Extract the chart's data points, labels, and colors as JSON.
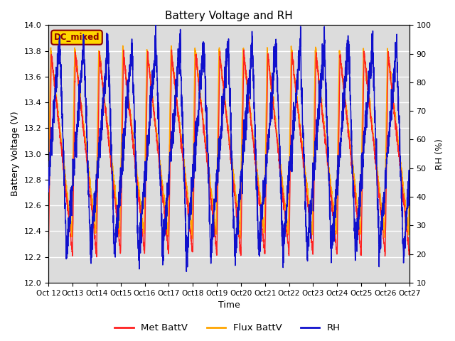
{
  "title": "Battery Voltage and RH",
  "xlabel": "Time",
  "ylabel_left": "Battery Voltage (V)",
  "ylabel_right": "RH (%)",
  "annotation": "DC_mixed",
  "annotation_color": "#8B0000",
  "annotation_bg": "#FFD700",
  "annotation_border": "#8B0000",
  "ylim_left": [
    12.0,
    14.0
  ],
  "ylim_right": [
    10,
    100
  ],
  "yticks_left": [
    12.0,
    12.2,
    12.4,
    12.6,
    12.8,
    13.0,
    13.2,
    13.4,
    13.6,
    13.8,
    14.0
  ],
  "yticks_right": [
    10,
    20,
    30,
    40,
    50,
    60,
    70,
    80,
    90,
    100
  ],
  "xtick_labels": [
    "Oct 12",
    "Oct 13",
    "Oct 14",
    "Oct 15",
    "Oct 16",
    "Oct 17",
    "Oct 18",
    "Oct 19",
    "Oct 20",
    "Oct 21",
    "Oct 22",
    "Oct 23",
    "Oct 24",
    "Oct 25",
    "Oct 26",
    "Oct 27"
  ],
  "color_met": "#FF2020",
  "color_flux": "#FFA500",
  "color_rh": "#1010CC",
  "legend_labels": [
    "Met BattV",
    "Flux BattV",
    "RH"
  ],
  "bg_color": "#DCDCDC",
  "grid_color": "#FFFFFF",
  "n_days": 15,
  "n_points": 3000,
  "seed": 42
}
